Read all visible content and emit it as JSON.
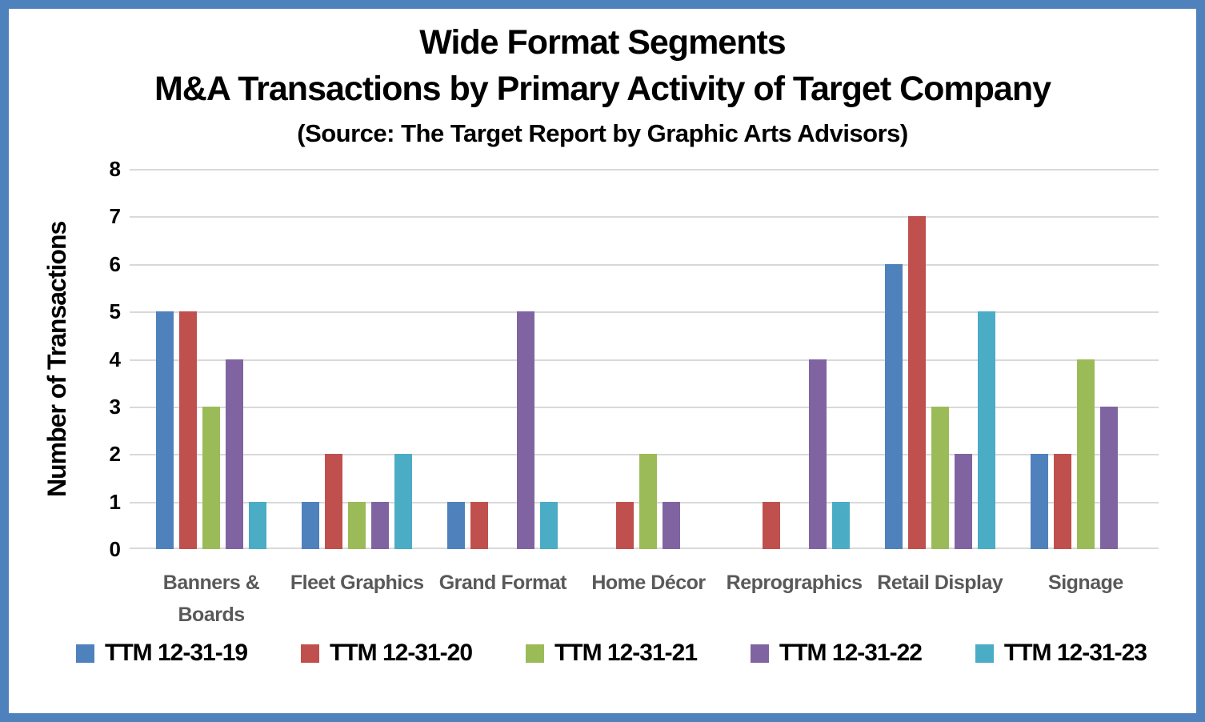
{
  "title": {
    "line1": "Wide Format Segments",
    "line2": "M&A Transactions by Primary Activity of Target Company",
    "line3": "(Source: The Target Report by Graphic Arts Advisors)"
  },
  "chart_data": {
    "type": "bar",
    "title": "Wide Format Segments",
    "subtitle": "M&A Transactions by Primary Activity of Target Company",
    "source_note": "(Source: The Target Report by Graphic Arts Advisors)",
    "xlabel": "",
    "ylabel": "Number of Transactions",
    "ylim": [
      0,
      8
    ],
    "yticks": [
      0,
      1,
      2,
      3,
      4,
      5,
      6,
      7,
      8
    ],
    "grid": true,
    "legend_position": "bottom",
    "categories": [
      "Banners & Boards",
      "Fleet Graphics",
      "Grand Format",
      "Home Décor",
      "Reprographics",
      "Retail Display",
      "Signage"
    ],
    "categories_display": [
      "Banners &\nBoards",
      "Fleet Graphics",
      "Grand Format",
      "Home Décor",
      "Reprographics",
      "Retail Display",
      "Signage"
    ],
    "series": [
      {
        "name": "TTM 12-31-19",
        "color": "#4F81BD",
        "values": [
          5,
          1,
          1,
          0,
          0,
          6,
          2
        ]
      },
      {
        "name": "TTM 12-31-20",
        "color": "#C0504D",
        "values": [
          5,
          2,
          1,
          1,
          1,
          7,
          2
        ]
      },
      {
        "name": "TTM 12-31-21",
        "color": "#9BBB59",
        "values": [
          3,
          1,
          0,
          2,
          0,
          3,
          4
        ]
      },
      {
        "name": "TTM 12-31-22",
        "color": "#8064A2",
        "values": [
          4,
          1,
          5,
          1,
          4,
          2,
          3
        ]
      },
      {
        "name": "TTM 12-31-23",
        "color": "#4BACC6",
        "values": [
          1,
          2,
          1,
          0,
          1,
          5,
          0
        ]
      }
    ]
  },
  "colors": {
    "frame_border": "#4F81BD",
    "gridline": "#D9D9D9",
    "category_label": "#595959",
    "text": "#000000"
  }
}
